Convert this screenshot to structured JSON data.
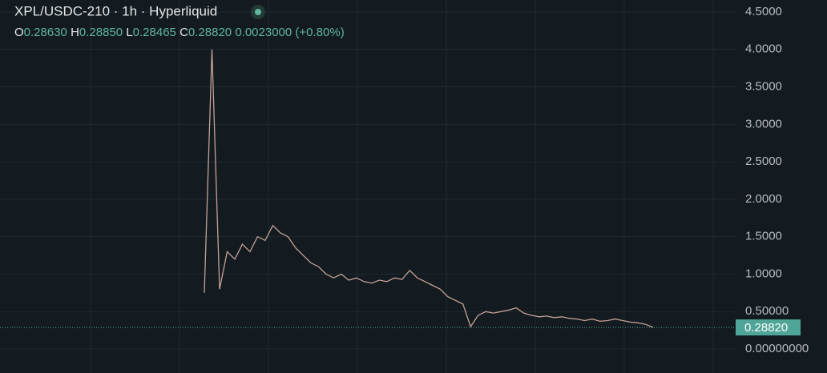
{
  "header": {
    "title": "XPL/USDC-210 · 1h · Hyperliquid",
    "ohlc": [
      {
        "key": "O",
        "value": "0.28630"
      },
      {
        "key": "H",
        "value": "0.28850"
      },
      {
        "key": "L",
        "value": "0.28465"
      },
      {
        "key": "C",
        "value": "0.28820"
      }
    ],
    "change": "0.0023000",
    "change_pct": "(+0.80%)"
  },
  "chart_data": {
    "type": "line",
    "color": "#c4a197",
    "values": [
      0.75,
      4.0,
      0.8,
      1.3,
      1.2,
      1.4,
      1.3,
      1.5,
      1.45,
      1.65,
      1.55,
      1.5,
      1.35,
      1.25,
      1.15,
      1.1,
      1.0,
      0.95,
      1.0,
      0.92,
      0.95,
      0.9,
      0.88,
      0.92,
      0.9,
      0.95,
      0.93,
      1.05,
      0.95,
      0.9,
      0.85,
      0.8,
      0.7,
      0.65,
      0.6,
      0.3,
      0.45,
      0.5,
      0.48,
      0.5,
      0.52,
      0.55,
      0.48,
      0.45,
      0.43,
      0.44,
      0.42,
      0.43,
      0.41,
      0.4,
      0.38,
      0.4,
      0.37,
      0.38,
      0.4,
      0.38,
      0.36,
      0.35,
      0.33,
      0.29
    ],
    "ylim": [
      -0.32,
      4.66
    ],
    "yticks": [
      {
        "value": 0,
        "label": "0.00000000"
      },
      {
        "value": 0.5,
        "label": "0.50000"
      },
      {
        "value": 1,
        "label": "1.0000"
      },
      {
        "value": 1.5,
        "label": "1.5000"
      },
      {
        "value": 2,
        "label": "2.0000"
      },
      {
        "value": 2.5,
        "label": "2.5000"
      },
      {
        "value": 3,
        "label": "3.0000"
      },
      {
        "value": 3.5,
        "label": "3.5000"
      },
      {
        "value": 4,
        "label": "4.0000"
      },
      {
        "value": 4.5,
        "label": "4.5000"
      }
    ],
    "grid": true,
    "last_price": {
      "value": 0.2882,
      "label": "0.28820"
    }
  }
}
